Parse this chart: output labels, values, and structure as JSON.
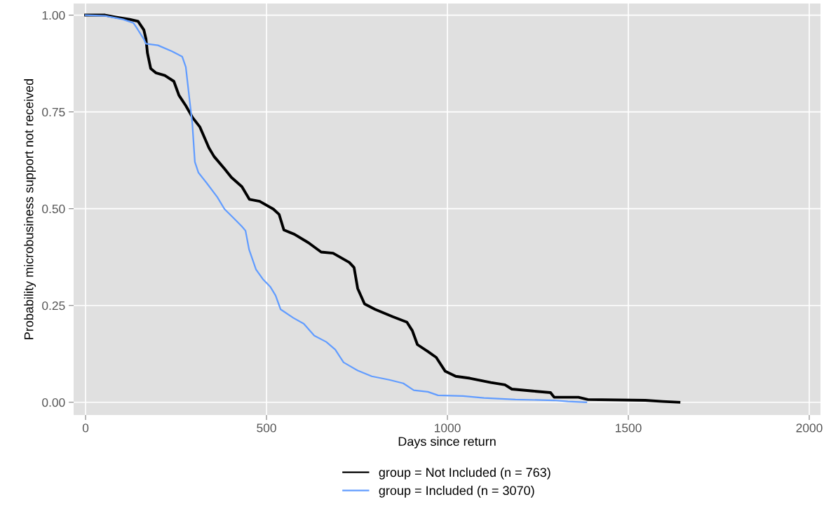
{
  "chart_data": {
    "type": "line",
    "xlabel": "Days since return",
    "ylabel": "Probability microbusiness support not received",
    "xlim": [
      -33,
      2031
    ],
    "ylim": [
      -0.033,
      1.03
    ],
    "xticks": [
      0,
      500,
      1000,
      1500,
      2000
    ],
    "yticks": [
      {
        "value": 0,
        "label": "0.00"
      },
      {
        "value": 0.25,
        "label": "0.25"
      },
      {
        "value": 0.5,
        "label": "0.50"
      },
      {
        "value": 0.75,
        "label": "0.75"
      },
      {
        "value": 1,
        "label": "1.00"
      }
    ],
    "grid": true,
    "legend": "bottom",
    "line_style": "solid",
    "series": [
      {
        "name": "group = Not Included (n = 763)",
        "color": "#000000",
        "x": [
          0,
          54,
          83,
          122,
          145,
          161,
          167,
          171,
          180,
          194,
          219,
          244,
          258,
          277,
          296,
          316,
          341,
          355,
          384,
          403,
          432,
          453,
          481,
          519,
          535,
          548,
          577,
          616,
          651,
          684,
          729,
          742,
          752,
          771,
          800,
          849,
          888,
          903,
          917,
          946,
          969,
          994,
          1023,
          1062,
          1120,
          1159,
          1178,
          1236,
          1285,
          1295,
          1362,
          1388,
          1547,
          1595,
          1640
        ],
        "values": [
          1.0,
          1.0,
          0.995,
          0.989,
          0.984,
          0.962,
          0.938,
          0.902,
          0.862,
          0.851,
          0.844,
          0.829,
          0.793,
          0.766,
          0.735,
          0.711,
          0.657,
          0.635,
          0.603,
          0.581,
          0.557,
          0.524,
          0.519,
          0.499,
          0.485,
          0.445,
          0.434,
          0.412,
          0.388,
          0.385,
          0.361,
          0.348,
          0.294,
          0.254,
          0.24,
          0.221,
          0.207,
          0.185,
          0.149,
          0.131,
          0.116,
          0.08,
          0.067,
          0.062,
          0.051,
          0.045,
          0.034,
          0.029,
          0.025,
          0.013,
          0.013,
          0.007,
          0.005,
          0.002,
          0.0
        ]
      },
      {
        "name": "group = Included (n = 3070)",
        "color": "#619cff",
        "x": [
          0,
          54,
          103,
          132,
          140,
          161,
          167,
          200,
          238,
          267,
          277,
          287,
          295,
          302,
          312,
          335,
          364,
          384,
          409,
          432,
          442,
          452,
          471,
          490,
          510,
          525,
          539,
          574,
          603,
          632,
          665,
          690,
          713,
          752,
          791,
          839,
          878,
          907,
          946,
          974,
          1043,
          1101,
          1188,
          1295,
          1333,
          1384
        ],
        "values": [
          1.0,
          0.998,
          0.989,
          0.98,
          0.969,
          0.938,
          0.926,
          0.922,
          0.907,
          0.893,
          0.866,
          0.784,
          0.72,
          0.621,
          0.593,
          0.566,
          0.53,
          0.499,
          0.476,
          0.454,
          0.443,
          0.394,
          0.343,
          0.318,
          0.299,
          0.276,
          0.24,
          0.218,
          0.203,
          0.172,
          0.156,
          0.136,
          0.103,
          0.082,
          0.067,
          0.058,
          0.049,
          0.031,
          0.027,
          0.018,
          0.016,
          0.011,
          0.007,
          0.005,
          0.002,
          0.0
        ]
      }
    ]
  }
}
